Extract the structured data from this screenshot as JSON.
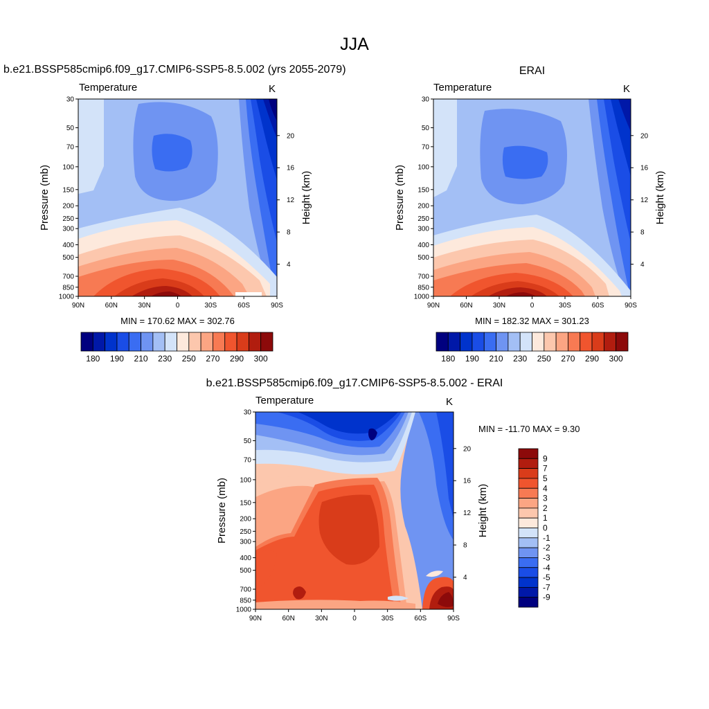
{
  "figure": {
    "title": "JJA"
  },
  "panels": [
    {
      "id": "model",
      "title": "b.e21.BSSP585cmip6.f09_g17.CMIP6-SSP5-8.5.002 (yrs 2055-2079)",
      "left_label": "Temperature",
      "right_label": "K",
      "stats": "MIN = 170.62  MAX = 302.76",
      "colorbar_labels": [
        "180",
        "190",
        "210",
        "230",
        "250",
        "270",
        "290",
        "300"
      ]
    },
    {
      "id": "obs",
      "title": "ERAI",
      "left_label": "Temperature",
      "right_label": "K",
      "stats": "MIN = 182.32  MAX = 301.23",
      "colorbar_labels": [
        "180",
        "190",
        "210",
        "230",
        "250",
        "270",
        "290",
        "300"
      ]
    },
    {
      "id": "diff",
      "title": "b.e21.BSSP585cmip6.f09_g17.CMIP6-SSP5-8.5.002 - ERAI",
      "left_label": "Temperature",
      "right_label": "K",
      "stats": "MIN = -11.70  MAX =   9.30",
      "colorbar_labels": [
        "9",
        "7",
        "5",
        "4",
        "3",
        "2",
        "1",
        "0",
        "-1",
        "-2",
        "-3",
        "-4",
        "-5",
        "-7",
        "-9"
      ]
    }
  ],
  "chart_data": [
    {
      "type": "heatmap",
      "title": "b.e21.BSSP585cmip6.f09_g17.CMIP6-SSP5-8.5.002 (yrs 2055-2079)",
      "xlabel": "",
      "ylabel": "Pressure (mb)",
      "y2label": "Height (km)",
      "x_ticks": [
        "90N",
        "60N",
        "30N",
        "0",
        "30S",
        "60S",
        "90S"
      ],
      "x_values": [
        90,
        60,
        30,
        0,
        -30,
        -60,
        -90
      ],
      "y_ticks": [
        30,
        50,
        70,
        100,
        150,
        200,
        250,
        300,
        400,
        500,
        700,
        850,
        1000
      ],
      "y2_ticks": [
        4,
        8,
        12,
        16,
        20
      ],
      "ylim": [
        1000,
        30
      ],
      "log_y": true,
      "units": "K",
      "min": 170.62,
      "max": 302.76,
      "levels": [
        180,
        185,
        190,
        200,
        210,
        220,
        230,
        240,
        250,
        260,
        270,
        280,
        290,
        295,
        300
      ],
      "colors": [
        "#00007f",
        "#0018a8",
        "#0033cc",
        "#1a4de6",
        "#3a6df2",
        "#6f94f2",
        "#a3bff5",
        "#d3e3f9",
        "#fde9dc",
        "#fcc7ad",
        "#fba583",
        "#f77a53",
        "#f0552e",
        "#d93c1a",
        "#b11d0f",
        "#8c0a0a"
      ]
    },
    {
      "type": "heatmap",
      "title": "ERAI",
      "xlabel": "",
      "ylabel": "Pressure (mb)",
      "y2label": "Height (km)",
      "x_ticks": [
        "90N",
        "60N",
        "30N",
        "0",
        "30S",
        "60S",
        "90S"
      ],
      "x_values": [
        90,
        60,
        30,
        0,
        -30,
        -60,
        -90
      ],
      "y_ticks": [
        30,
        50,
        70,
        100,
        150,
        200,
        250,
        300,
        400,
        500,
        700,
        850,
        1000
      ],
      "y2_ticks": [
        4,
        8,
        12,
        16,
        20
      ],
      "ylim": [
        1000,
        30
      ],
      "log_y": true,
      "units": "K",
      "min": 182.32,
      "max": 301.23,
      "levels": [
        180,
        185,
        190,
        200,
        210,
        220,
        230,
        240,
        250,
        260,
        270,
        280,
        290,
        295,
        300
      ],
      "colors": [
        "#00007f",
        "#0018a8",
        "#0033cc",
        "#1a4de6",
        "#3a6df2",
        "#6f94f2",
        "#a3bff5",
        "#d3e3f9",
        "#fde9dc",
        "#fcc7ad",
        "#fba583",
        "#f77a53",
        "#f0552e",
        "#d93c1a",
        "#b11d0f",
        "#8c0a0a"
      ]
    },
    {
      "type": "heatmap",
      "title": "b.e21.BSSP585cmip6.f09_g17.CMIP6-SSP5-8.5.002 - ERAI",
      "xlabel": "",
      "ylabel": "Pressure (mb)",
      "y2label": "Height (km)",
      "x_ticks": [
        "90N",
        "60N",
        "30N",
        "0",
        "30S",
        "60S",
        "90S"
      ],
      "x_values": [
        90,
        60,
        30,
        0,
        -30,
        -60,
        -90
      ],
      "y_ticks": [
        30,
        50,
        70,
        100,
        150,
        200,
        250,
        300,
        400,
        500,
        700,
        850,
        1000
      ],
      "y2_ticks": [
        4,
        8,
        12,
        16,
        20
      ],
      "ylim": [
        1000,
        30
      ],
      "log_y": true,
      "units": "K",
      "min": -11.7,
      "max": 9.3,
      "levels": [
        -9,
        -7,
        -5,
        -4,
        -3,
        -2,
        -1,
        0,
        1,
        2,
        3,
        4,
        5,
        7,
        9
      ],
      "colors": [
        "#00007f",
        "#0018a8",
        "#0033cc",
        "#1a4de6",
        "#3a6df2",
        "#6f94f2",
        "#a3bff5",
        "#d3e3f9",
        "#fde9dc",
        "#fcc7ad",
        "#fba583",
        "#f77a53",
        "#f0552e",
        "#d93c1a",
        "#b11d0f",
        "#8c0a0a"
      ]
    }
  ]
}
